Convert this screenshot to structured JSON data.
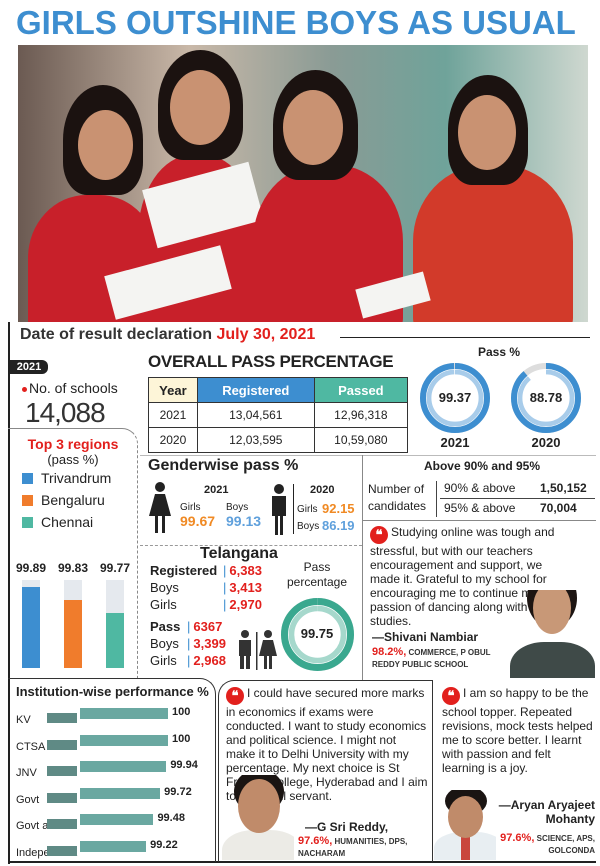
{
  "title": "GIRLS OUTSHINE BOYS AS USUAL",
  "date_label": "Date of result declaration",
  "date_value": "July 30, 2021",
  "schools": {
    "year_badge": "2021",
    "label": "No. of schools",
    "value": "14,088"
  },
  "regions": {
    "title": "Top 3 regions",
    "subtitle": "(pass %)"
  },
  "overall": {
    "title": "OVERALL PASS PERCENTAGE",
    "headers": [
      "Year",
      "Registered",
      "Passed"
    ],
    "header_colors": [
      "#fdf5d8",
      "#3d8ed0",
      "#4fb8a2"
    ],
    "rows": [
      [
        "2021",
        "13,04,561",
        "12,96,318"
      ],
      [
        "2020",
        "12,03,595",
        "10,59,080"
      ]
    ]
  },
  "pass_pct": {
    "title": "Pass %"
  },
  "genderwise": {
    "title": "Genderwise pass %",
    "y2021": {
      "year": "2021",
      "girls_label": "Girls",
      "girls": "99.67",
      "boys_label": "Boys",
      "boys": "99.13"
    },
    "y2020": {
      "year": "2020",
      "girls_label": "Girls",
      "girls": "92.15",
      "boys_label": "Boys",
      "boys": "86.19"
    },
    "girls_color": "#f08a24",
    "boys_color": "#5fa0dc"
  },
  "above": {
    "title": "Above 90% and 95%",
    "label": "Number of candidates",
    "rows": [
      {
        "label": "90% & above",
        "value": "1,50,152"
      },
      {
        "label": "95% & above",
        "value": "70,004"
      }
    ]
  },
  "telangana": {
    "title": "Telangana",
    "registered": [
      {
        "label": "Registered",
        "value": "6,383"
      },
      {
        "label": "Boys",
        "value": "3,413"
      },
      {
        "label": "Girls",
        "value": "2,970"
      }
    ],
    "pass": [
      {
        "label": "Pass",
        "value": "6367"
      },
      {
        "label": "Boys",
        "value": "3,399"
      },
      {
        "label": "Girls",
        "value": "2,968"
      }
    ],
    "pass_pct_label": "Pass percentage"
  },
  "quotes": [
    {
      "text": "Studying online was tough and stressful, but with our teachers encouragement and support, we made it. Grateful to my school for encouraging me to continue my passion of dancing along with studies.",
      "name": "—Shivani Nambiar",
      "score": "98.2%,",
      "detail": "COMMERCE, P OBUL REDDY PUBLIC SCHOOL"
    },
    {
      "text": "I could have secured more marks in economics if exams were conducted. I want to study economics and political science. I might not make it to Delhi University with my percentage. My next choice is St Francis College, Hyderabad and I aim to be a civil servant.",
      "name": "—G Sri Reddy,",
      "score": "97.6%,",
      "detail": "HUMANITIES, DPS, NACHARAM"
    },
    {
      "text": "I am so happy to be the school topper. Repeated revisions, mock tests helped me to score better. I learnt with passion and felt learning is a joy.",
      "name": "—Aryan Aryajeet Mohanty",
      "score": "97.6%,",
      "detail": "SCIENCE, APS, GOLCONDA"
    }
  ],
  "chart_data": [
    {
      "type": "bar",
      "title": "Top 3 regions",
      "subtitle": "(pass %)",
      "categories": [
        "Trivandrum",
        "Bengaluru",
        "Chennai"
      ],
      "values": [
        99.89,
        99.83,
        99.77
      ],
      "colors": [
        "#3d8ed0",
        "#f07c2c",
        "#4fb8a2"
      ],
      "legend": "top"
    },
    {
      "type": "pie",
      "title": "Pass %",
      "categories": [
        "2021",
        "2020"
      ],
      "values": [
        99.37,
        88.78
      ],
      "color": "#3d8ed0"
    },
    {
      "type": "pie",
      "title": "Pass percentage",
      "categories": [
        "Telangana"
      ],
      "values": [
        99.75
      ],
      "color": "#3aa88f"
    },
    {
      "type": "bar",
      "orientation": "horizontal",
      "title": "Institution-wise performance %",
      "categories": [
        "KV",
        "CTSA",
        "JNV",
        "Govt",
        "Govt aided",
        "Independent"
      ],
      "values": [
        100,
        100,
        99.94,
        99.72,
        99.48,
        99.22
      ],
      "color": "#6aa8a1"
    }
  ]
}
